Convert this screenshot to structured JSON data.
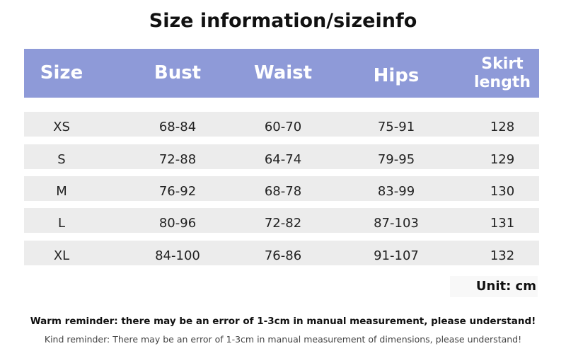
{
  "header": {
    "title": "Size information/sizeinfo"
  },
  "table": {
    "columns": [
      "Size",
      "Bust",
      "Waist",
      "Hips",
      "Skirt length"
    ],
    "rows": [
      [
        "XS",
        "68-84",
        "60-70",
        "75-91",
        "128"
      ],
      [
        "S",
        "72-88",
        "64-74",
        "79-95",
        "129"
      ],
      [
        "M",
        "76-92",
        "68-78",
        "83-99",
        "130"
      ],
      [
        "L",
        "80-96",
        "72-82",
        "87-103",
        "131"
      ],
      [
        "XL",
        "84-100",
        "76-86",
        "91-107",
        "132"
      ]
    ]
  },
  "footer": {
    "unit": "Unit: cm",
    "warm_reminder": "Warm reminder: there may be an error of 1-3cm in manual measurement, please understand!",
    "kind_reminder": "Kind reminder: There may be an error of 1-3cm in manual measurement of dimensions, please understand!"
  }
}
